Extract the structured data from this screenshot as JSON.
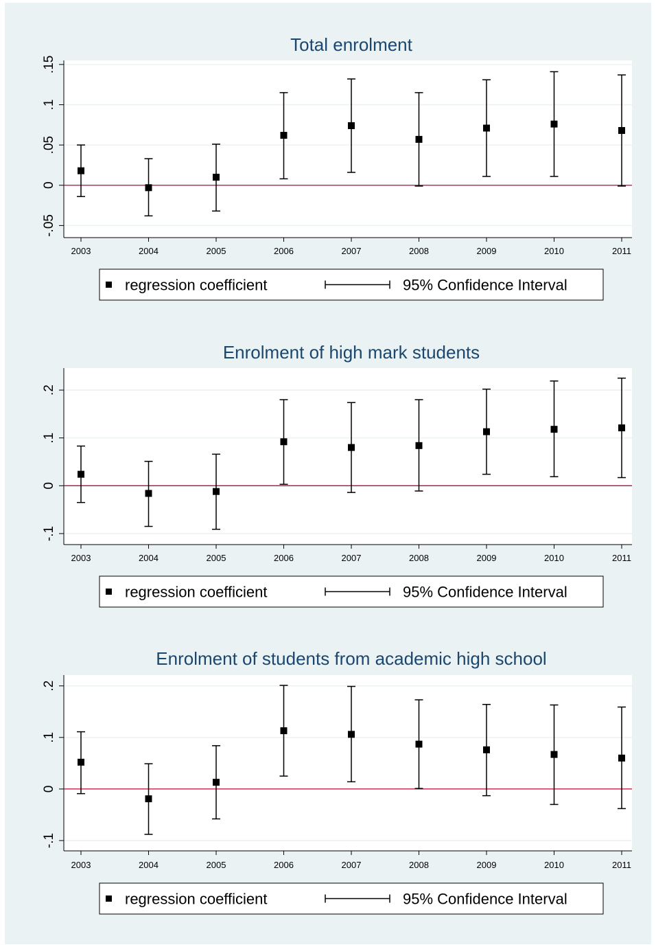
{
  "chart_data": [
    {
      "type": "scatter",
      "title": "Total enrolment",
      "x": [
        2003,
        2004,
        2005,
        2006,
        2007,
        2008,
        2009,
        2010,
        2011
      ],
      "x_tick_labels": [
        "2003",
        "2004",
        "2005",
        "2006",
        "2007",
        "2008",
        "2009",
        "2010",
        "2011"
      ],
      "y_ticks": [
        -0.05,
        0,
        0.05,
        0.1,
        0.15
      ],
      "y_tick_labels": [
        "-.05",
        "0",
        ".05",
        ".1",
        ".15"
      ],
      "ylim": [
        -0.065,
        0.155
      ],
      "grid": true,
      "reference_line": 0,
      "series": [
        {
          "name": "regression coefficient",
          "values": [
            0.018,
            -0.003,
            0.01,
            0.062,
            0.074,
            0.057,
            0.071,
            0.076,
            0.068
          ]
        },
        {
          "name": "95% Confidence Interval",
          "lower": [
            -0.014,
            -0.038,
            -0.032,
            0.008,
            0.016,
            -0.001,
            0.011,
            0.011,
            -0.001
          ],
          "upper": [
            0.05,
            0.033,
            0.051,
            0.115,
            0.132,
            0.115,
            0.131,
            0.141,
            0.137
          ]
        }
      ],
      "legend": {
        "position": "bottom",
        "items": [
          "regression coefficient",
          "95% Confidence Interval"
        ]
      }
    },
    {
      "type": "scatter",
      "title": "Enrolment of high mark students",
      "x": [
        2003,
        2004,
        2005,
        2006,
        2007,
        2008,
        2009,
        2010,
        2011
      ],
      "x_tick_labels": [
        "2003",
        "2004",
        "2005",
        "2006",
        "2007",
        "2008",
        "2009",
        "2010",
        "2011"
      ],
      "y_ticks": [
        -0.1,
        0,
        0.1,
        0.2
      ],
      "y_tick_labels": [
        "-.1",
        "0",
        ".1",
        ".2"
      ],
      "ylim": [
        -0.123,
        0.246
      ],
      "grid": true,
      "reference_line": 0,
      "series": [
        {
          "name": "regression coefficient",
          "values": [
            0.024,
            -0.016,
            -0.012,
            0.092,
            0.08,
            0.084,
            0.113,
            0.118,
            0.121
          ]
        },
        {
          "name": "95% Confidence Interval",
          "lower": [
            -0.035,
            -0.085,
            -0.091,
            0.003,
            -0.014,
            -0.011,
            0.024,
            0.019,
            0.017
          ],
          "upper": [
            0.083,
            0.051,
            0.066,
            0.18,
            0.174,
            0.18,
            0.202,
            0.219,
            0.225
          ]
        }
      ],
      "legend": {
        "position": "bottom",
        "items": [
          "regression coefficient",
          "95% Confidence Interval"
        ]
      }
    },
    {
      "type": "scatter",
      "title": "Enrolment of students from academic high school",
      "x": [
        2003,
        2004,
        2005,
        2006,
        2007,
        2008,
        2009,
        2010,
        2011
      ],
      "x_tick_labels": [
        "2003",
        "2004",
        "2005",
        "2006",
        "2007",
        "2008",
        "2009",
        "2010",
        "2011"
      ],
      "y_ticks": [
        -0.1,
        0,
        0.1,
        0.2
      ],
      "y_tick_labels": [
        "-.1",
        "0",
        ".1",
        ".2"
      ],
      "ylim": [
        -0.12,
        0.221
      ],
      "grid": true,
      "reference_line": 0,
      "series": [
        {
          "name": "regression coefficient",
          "values": [
            0.052,
            -0.019,
            0.013,
            0.113,
            0.106,
            0.087,
            0.076,
            0.067,
            0.06
          ]
        },
        {
          "name": "95% Confidence Interval",
          "lower": [
            -0.009,
            -0.088,
            -0.058,
            0.025,
            0.014,
            0.001,
            -0.013,
            -0.03,
            -0.038
          ],
          "upper": [
            0.111,
            0.049,
            0.084,
            0.201,
            0.199,
            0.173,
            0.164,
            0.163,
            0.159
          ]
        }
      ],
      "legend": {
        "position": "bottom",
        "items": [
          "regression coefficient",
          "95% Confidence Interval"
        ]
      }
    }
  ],
  "colors": {
    "figure_background": "#eaf2f3",
    "plot_background": "#ffffff",
    "title": "#1a476f",
    "reference_line": "#c10534",
    "gridline": "#eaf2f3",
    "marker": "#000000"
  }
}
